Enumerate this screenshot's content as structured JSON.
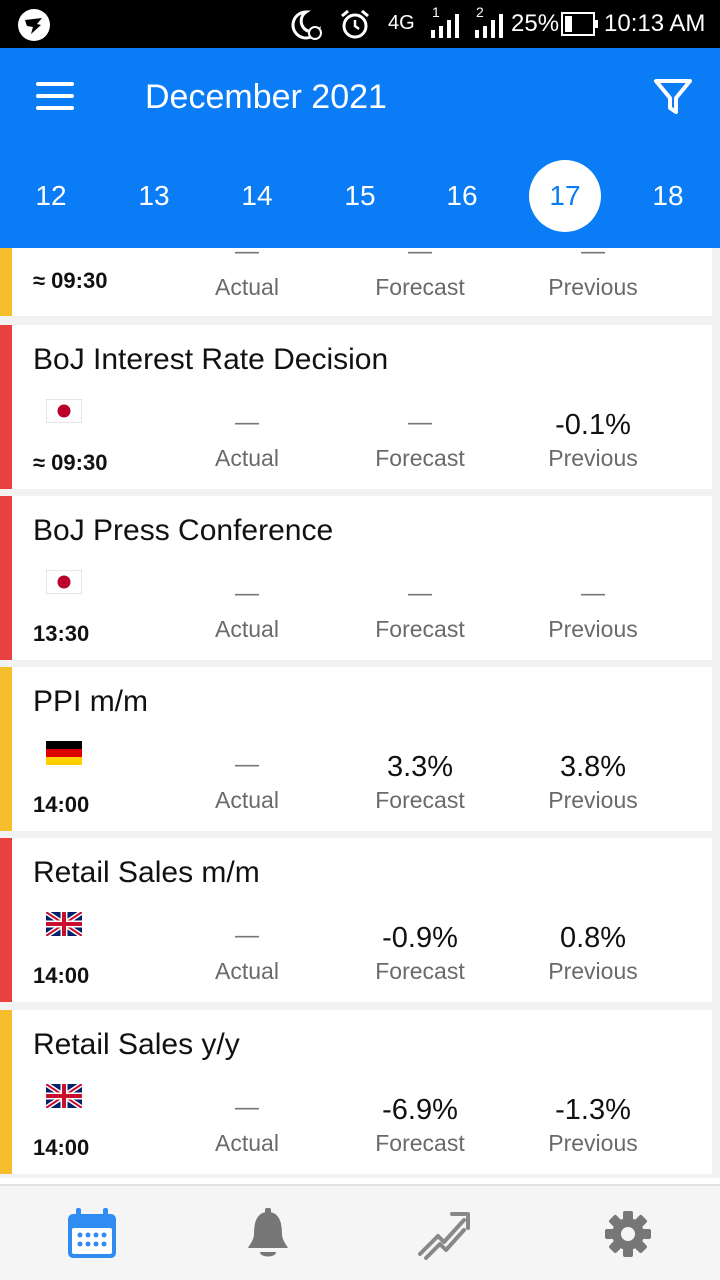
{
  "status_bar": {
    "network": "4G",
    "sim1": "1",
    "sim2": "2",
    "battery": "25%",
    "time": "10:13 AM"
  },
  "header": {
    "title": "December 2021",
    "menu_icon": "hamburger-menu-icon",
    "filter_icon": "filter-icon"
  },
  "days": [
    "12",
    "13",
    "14",
    "15",
    "16",
    "17",
    "18"
  ],
  "selected_day": "17",
  "labels": {
    "actual": "Actual",
    "forecast": "Forecast",
    "previous": "Previous"
  },
  "colors": {
    "accent": "#0a7cf5",
    "high_impact": "#e94040",
    "medium_impact": "#f4be2c"
  },
  "events": [
    {
      "title": "",
      "time": "≈ 09:30",
      "flag": "",
      "impact": "medium",
      "actual": "—",
      "forecast": "—",
      "previous": "—"
    },
    {
      "title": "BoJ Interest Rate Decision",
      "time": "≈ 09:30",
      "flag": "japan",
      "impact": "high",
      "actual": "—",
      "forecast": "—",
      "previous": "-0.1%"
    },
    {
      "title": "BoJ Press Conference",
      "time": "13:30",
      "flag": "japan",
      "impact": "high",
      "actual": "—",
      "forecast": "—",
      "previous": "—"
    },
    {
      "title": "PPI m/m",
      "time": "14:00",
      "flag": "germany",
      "impact": "medium",
      "actual": "—",
      "forecast": "3.3%",
      "previous": "3.8%"
    },
    {
      "title": "Retail Sales m/m",
      "time": "14:00",
      "flag": "uk",
      "impact": "high",
      "actual": "—",
      "forecast": "-0.9%",
      "previous": "0.8%"
    },
    {
      "title": "Retail Sales y/y",
      "time": "14:00",
      "flag": "uk",
      "impact": "medium",
      "actual": "—",
      "forecast": "-6.9%",
      "previous": "-1.3%"
    }
  ],
  "bottom_nav": [
    "calendar-icon",
    "bell-icon",
    "chart-trend-icon",
    "gear-icon"
  ],
  "bottom_nav_active": "calendar-icon"
}
